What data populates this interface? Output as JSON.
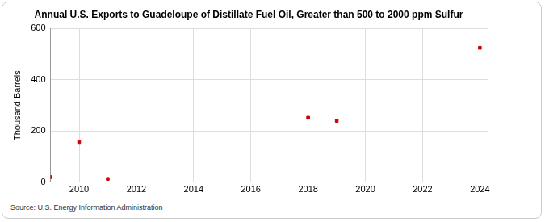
{
  "chart_data": {
    "type": "scatter",
    "title": "Annual U.S. Exports to Guadeloupe of Distillate Fuel Oil, Greater than 500 to 2000 ppm Sulfur",
    "y_label": "Thousand Barrels",
    "source": "Source: U.S. Energy Information Administration",
    "x": [
      2009,
      2010,
      2011,
      2018,
      2019,
      2024
    ],
    "values": [
      20,
      157,
      13,
      252,
      240,
      525
    ],
    "color": "#cc0000",
    "marker": "square",
    "xlim": [
      2009,
      2024.3
    ],
    "xticks": [
      2010,
      2012,
      2014,
      2016,
      2018,
      2020,
      2022,
      2024
    ],
    "ylim": [
      0,
      600
    ],
    "yticks": [
      0,
      200,
      400,
      600
    ],
    "grid": true
  }
}
